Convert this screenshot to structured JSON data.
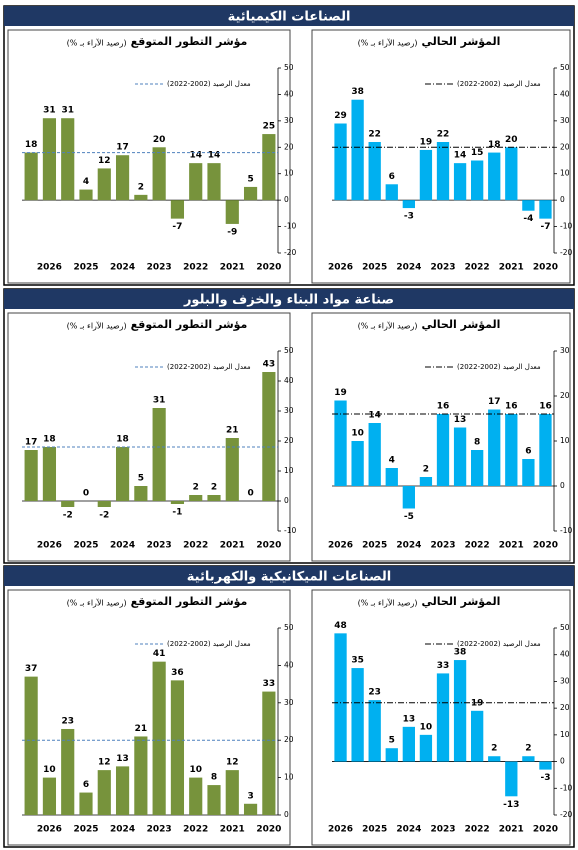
{
  "sections": [
    "الصناعات الكيميائية",
    "صناعة مواد البناء والخزف والبلور",
    "الصناعات الميكانيكية والكهربائية"
  ],
  "chart_data": [
    {
      "type": "bar",
      "title": "مؤشر التطور المتوقع",
      "subtitle": "(رصيد الآراء بـ %)",
      "color": "#77933c",
      "categories": [
        null,
        "2026",
        null,
        "2025",
        null,
        "2024",
        null,
        "2023",
        null,
        "2022",
        null,
        "2021",
        null,
        "2020"
      ],
      "values": [
        18,
        31,
        31,
        4,
        12,
        17,
        2,
        20,
        -7,
        14,
        14,
        -9,
        5,
        25
      ],
      "ylim": [
        -20,
        50
      ],
      "yticks": [
        -20,
        -10,
        0,
        10,
        20,
        30,
        40,
        50
      ],
      "reference": {
        "label": "معدل الرصيد (2002-2022)",
        "value": 18,
        "style": "dashed",
        "color": "#4f81bd"
      }
    },
    {
      "type": "bar",
      "title": "المؤشر الحالي",
      "subtitle": "(رصيد الآراء بـ %)",
      "color": "#00b0f0",
      "categories": [
        "2026",
        null,
        "2025",
        null,
        "2024",
        null,
        "2023",
        null,
        "2022",
        null,
        "2021",
        null,
        "2020"
      ],
      "values": [
        29,
        38,
        22,
        6,
        -3,
        19,
        22,
        14,
        15,
        18,
        20,
        -4,
        -7
      ],
      "ylim": [
        -20,
        50
      ],
      "yticks": [
        -20,
        -10,
        0,
        10,
        20,
        30,
        40,
        50
      ],
      "reference": {
        "label": "معدل الرصيد (2002-2022)",
        "value": 20,
        "style": "dash-dot",
        "color": "#000000"
      }
    },
    {
      "type": "bar",
      "title": "مؤشر التطور المتوقع",
      "subtitle": "(رصيد الآراء بـ %)",
      "color": "#77933c",
      "categories": [
        null,
        "2026",
        null,
        "2025",
        null,
        "2024",
        null,
        "2023",
        null,
        "2022",
        null,
        "2021",
        null,
        "2020"
      ],
      "values": [
        17,
        18,
        -2,
        0,
        -2,
        18,
        5,
        31,
        -1,
        2,
        2,
        21,
        0,
        43
      ],
      "ylim": [
        -10,
        50
      ],
      "yticks": [
        -10,
        0,
        10,
        20,
        30,
        40,
        50
      ],
      "reference": {
        "label": "معدل الرصيد (2002-2022)",
        "value": 18,
        "style": "dashed",
        "color": "#4f81bd"
      }
    },
    {
      "type": "bar",
      "title": "المؤشر الحالي",
      "subtitle": "(رصيد الآراء بـ %)",
      "color": "#00b0f0",
      "categories": [
        "2026",
        null,
        "2025",
        null,
        "2024",
        null,
        "2023",
        null,
        "2022",
        null,
        "2021",
        null,
        "2020"
      ],
      "values": [
        19,
        10,
        14,
        4,
        -5,
        2,
        16,
        13,
        8,
        17,
        16,
        6,
        16
      ],
      "ylim": [
        -10,
        30
      ],
      "yticks": [
        -10,
        0,
        10,
        20,
        30
      ],
      "reference": {
        "label": "معدل الرصيد (2002-2022)",
        "value": 16,
        "style": "dash-dot",
        "color": "#000000"
      }
    },
    {
      "type": "bar",
      "title": "مؤشر التطور المتوقع",
      "subtitle": "(رصيد الآراء بـ %)",
      "color": "#77933c",
      "categories": [
        null,
        "2026",
        null,
        "2025",
        null,
        "2024",
        null,
        "2023",
        null,
        "2022",
        null,
        "2021",
        null,
        "2020"
      ],
      "values": [
        37,
        10,
        23,
        6,
        12,
        13,
        21,
        41,
        36,
        10,
        8,
        12,
        3,
        33
      ],
      "ylim": [
        0,
        50
      ],
      "yticks": [
        0,
        10,
        20,
        30,
        40,
        50
      ],
      "reference": {
        "label": "معدل الرصيد (2002-2022)",
        "value": 20,
        "style": "dashed",
        "color": "#4f81bd"
      }
    },
    {
      "type": "bar",
      "title": "المؤشر الحالي",
      "subtitle": "(رصيد الآراء بـ %)",
      "color": "#00b0f0",
      "categories": [
        "2026",
        null,
        "2025",
        null,
        "2024",
        null,
        "2023",
        null,
        "2022",
        null,
        "2021",
        null,
        "2020"
      ],
      "values": [
        48,
        35,
        23,
        5,
        13,
        10,
        33,
        38,
        19,
        2,
        -13,
        2,
        -3
      ],
      "ylim": [
        -20,
        50
      ],
      "yticks": [
        -20,
        -10,
        0,
        10,
        20,
        30,
        40,
        50
      ],
      "reference": {
        "label": "معدل الرصيد (2002-2022)",
        "value": 22,
        "style": "dash-dot",
        "color": "#000000"
      }
    }
  ]
}
